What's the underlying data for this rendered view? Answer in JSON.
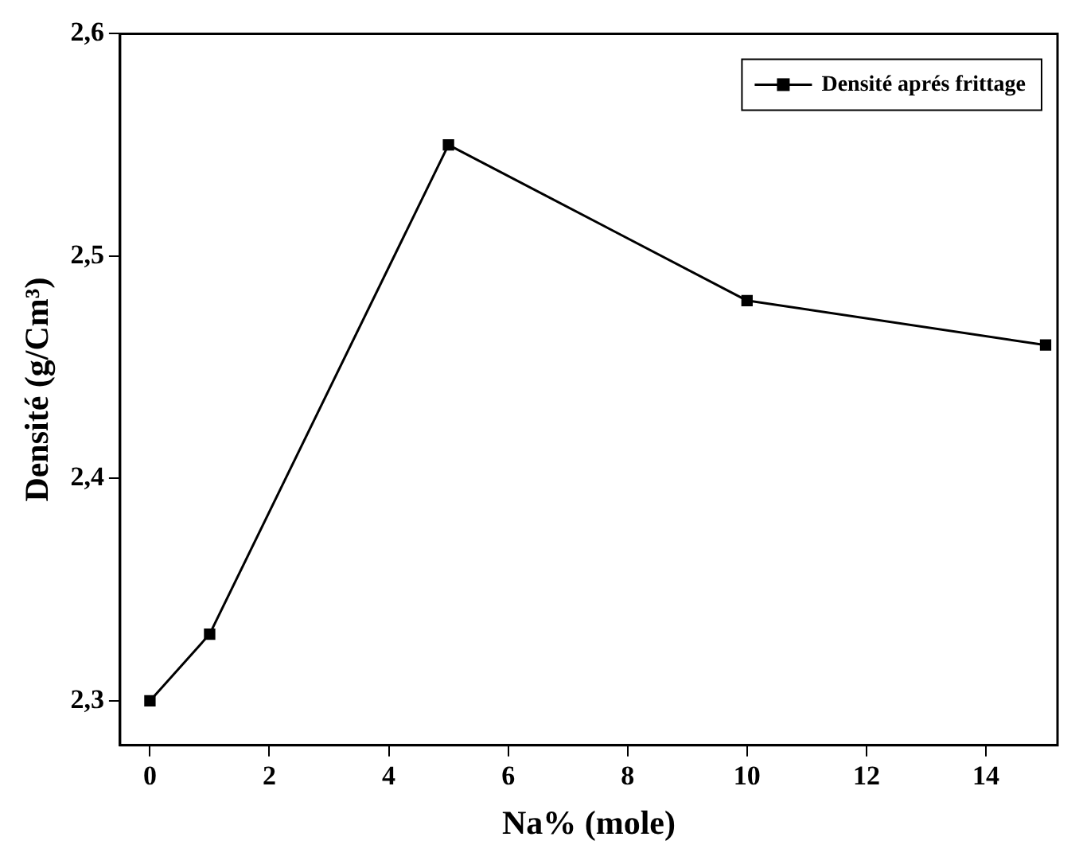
{
  "chart_data": {
    "type": "line",
    "xlabel": "Na% (mole)",
    "ylabel": "Densité (g/Cm³)",
    "x": [
      0,
      1,
      5,
      10,
      15
    ],
    "series": [
      {
        "name": "Densité aprés frittage",
        "color": "#000000",
        "values": [
          2.3,
          2.33,
          2.55,
          2.48,
          2.46
        ]
      }
    ],
    "xlim": [
      -0.5,
      15.2
    ],
    "xticks": [
      0,
      2,
      4,
      6,
      8,
      10,
      12,
      14
    ],
    "ylim": [
      2.28,
      2.6
    ],
    "yticks": [
      {
        "value": 2.3,
        "label": "2,3"
      },
      {
        "value": 2.4,
        "label": "2,4"
      },
      {
        "value": 2.5,
        "label": "2,5"
      },
      {
        "value": 2.6,
        "label": "2,6"
      }
    ],
    "marker": "square",
    "line_style": "solid",
    "legend": "top right",
    "grid": false
  }
}
